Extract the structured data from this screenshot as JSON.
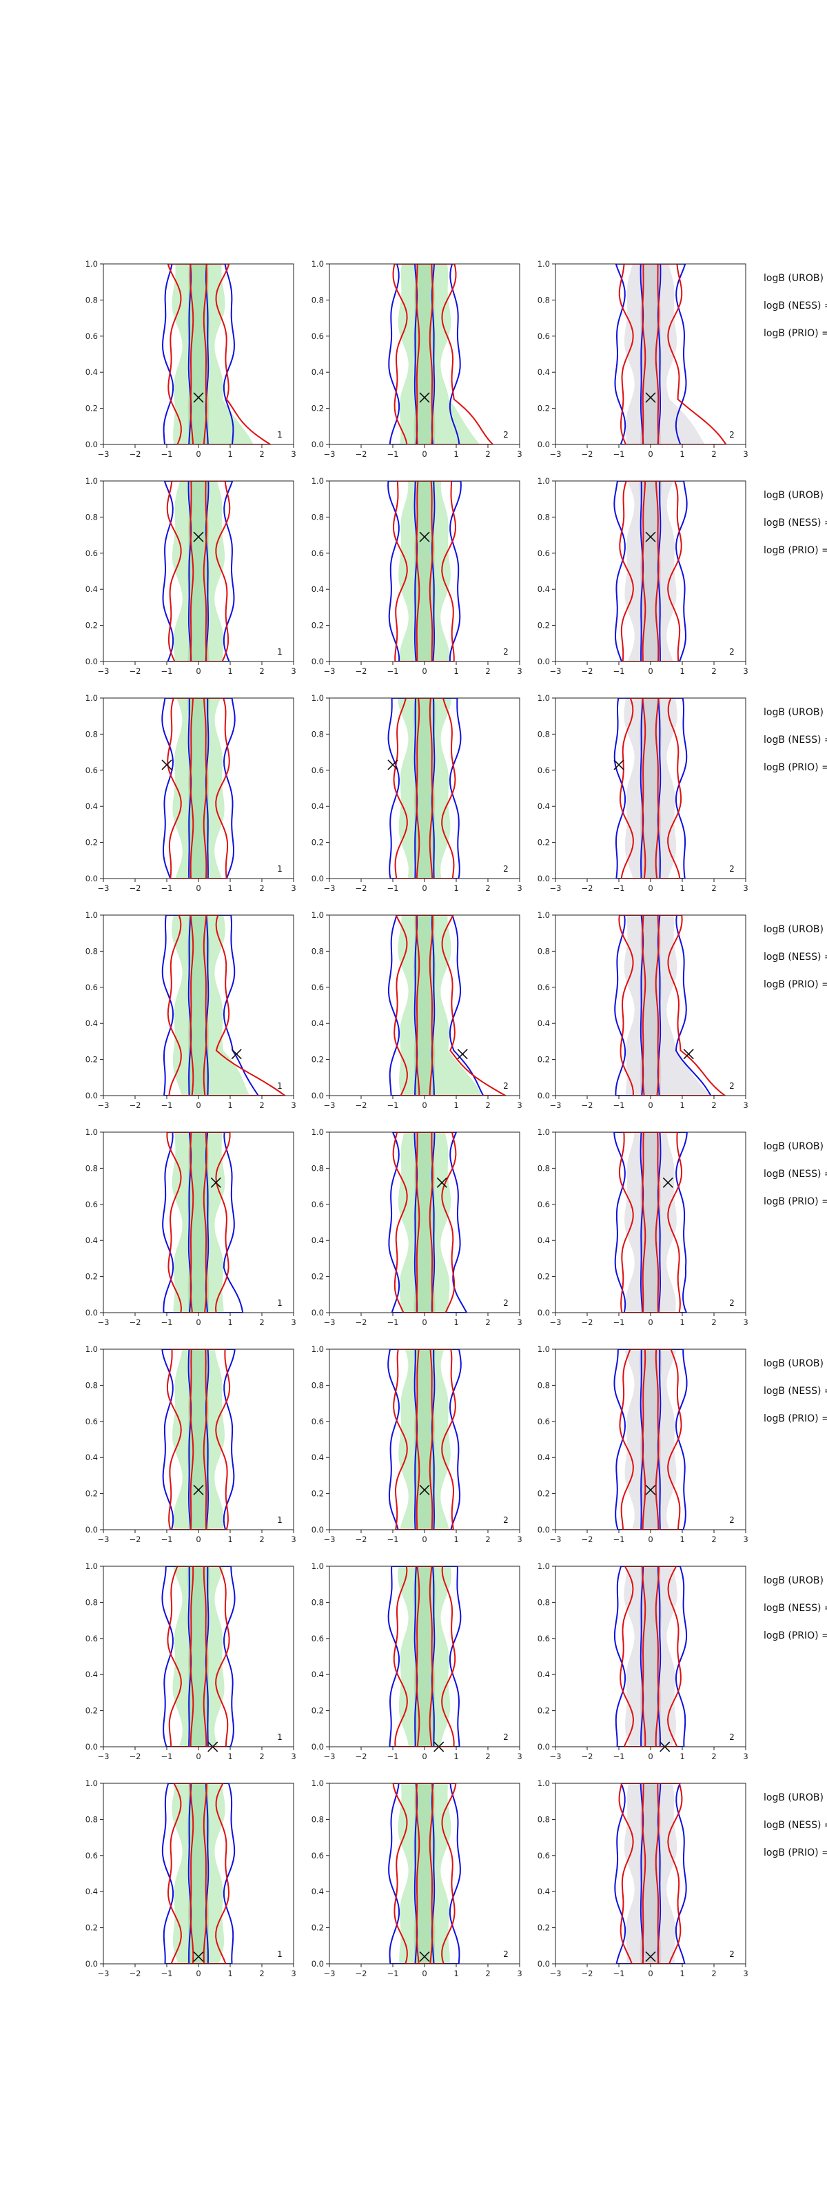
{
  "chart_data": {
    "type": "contour",
    "layout": {
      "rows": 8,
      "cols": 3
    },
    "xlim": [
      -3,
      3
    ],
    "ylim": [
      0.0,
      1.0
    ],
    "x_ticks": [
      -3,
      -2,
      -1,
      0,
      1,
      2,
      3
    ],
    "y_ticks": [
      0.0,
      0.2,
      0.4,
      0.6,
      0.8,
      1.0
    ],
    "x_tick_labels": [
      "−3",
      "−2",
      "−1",
      "0",
      "1",
      "2",
      "3"
    ],
    "y_tick_labels": [
      "0.0",
      "0.2",
      "0.4",
      "0.6",
      "0.8",
      "1.0"
    ],
    "grid": false,
    "colors": {
      "fill_green": "#c8efc8",
      "fill_green_dark": "#a7dca9",
      "fill_grey": "#e6e6ea",
      "fill_grey_dark": "#cacad0",
      "line_blue": "#1010e0",
      "line_red": "#e01010",
      "marker": "#111111"
    },
    "row_labels": [
      "logB (UROB) =",
      "logB (NESS) =",
      "logB (PRIO) ="
    ],
    "panel_tags": [
      "1",
      "2",
      "2"
    ],
    "panel_fill": [
      "green",
      "green",
      "grey"
    ],
    "rows": [
      {
        "marker": [
          0.0,
          0.26
        ],
        "red_tail": 1.6,
        "blue_tail": 0.0
      },
      {
        "marker": [
          0.0,
          0.69
        ],
        "red_tail": 0.0,
        "blue_tail": 0.0
      },
      {
        "marker": [
          -1.0,
          0.63
        ],
        "red_tail": 0.0,
        "blue_tail": 0.0
      },
      {
        "marker": [
          1.2,
          0.23
        ],
        "red_tail": 1.8,
        "blue_tail": 0.8
      },
      {
        "marker": [
          0.55,
          0.72
        ],
        "red_tail": 0.0,
        "blue_tail": 0.3
      },
      {
        "marker": [
          0.0,
          0.22
        ],
        "red_tail": 0.0,
        "blue_tail": 0.0
      },
      {
        "marker": [
          0.45,
          0.0
        ],
        "red_tail": 0.0,
        "blue_tail": 0.0
      },
      {
        "marker": [
          0.0,
          0.04
        ],
        "red_tail": 0.0,
        "blue_tail": 0.0
      }
    ]
  }
}
